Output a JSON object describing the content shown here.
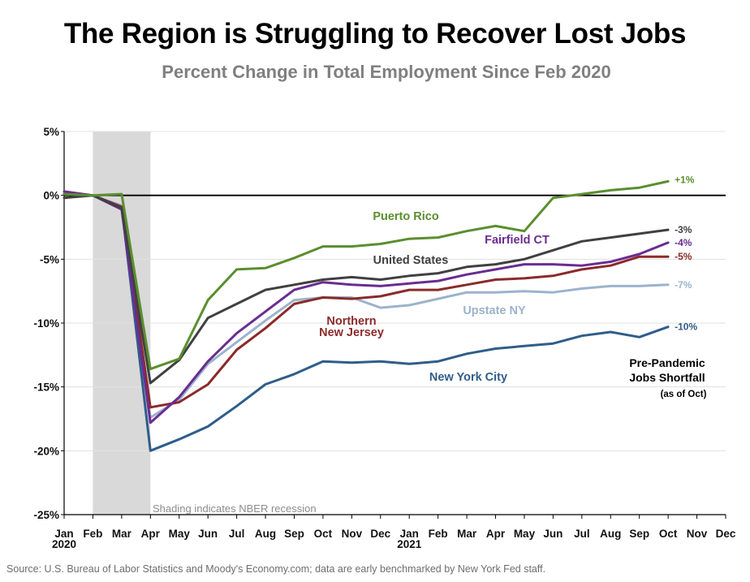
{
  "title": "The Region is Struggling to Recover Lost Jobs",
  "subtitle": "Percent Change in Total Employment Since Feb 2020",
  "source": "Source: U.S. Bureau of Labor Statistics and Moody's Economy.com; data are early benchmarked by New York Fed staff.",
  "chart_data": {
    "type": "line",
    "title": "The Region is Struggling to Recover Lost Jobs",
    "subtitle": "Percent Change in Total Employment Since Feb 2020",
    "xlabel": "",
    "ylabel": "",
    "x": [
      "Jan 2020",
      "Feb",
      "Mar",
      "Apr",
      "May",
      "Jun",
      "Jul",
      "Aug",
      "Sep",
      "Oct",
      "Nov",
      "Dec",
      "Jan 2021",
      "Feb",
      "Mar",
      "Apr",
      "May",
      "Jun",
      "Jul",
      "Aug",
      "Sep",
      "Oct"
    ],
    "x_ticks": [
      "Jan",
      "Feb",
      "Mar",
      "Apr",
      "May",
      "Jun",
      "Jul",
      "Aug",
      "Sep",
      "Oct",
      "Nov",
      "Dec",
      "Jan",
      "Feb",
      "Mar",
      "Apr",
      "May",
      "Jun",
      "Jul",
      "Aug",
      "Sep",
      "Oct",
      "Nov",
      "Dec"
    ],
    "x_year_labels": [
      "2020",
      "2021"
    ],
    "y_ticks": [
      "5%",
      "0%",
      "-5%",
      "-10%",
      "-15%",
      "-20%",
      "-25%"
    ],
    "ylim": [
      -25,
      5
    ],
    "grid": true,
    "zero_line": true,
    "recession_shading": {
      "start": "Feb 2020",
      "end": "Apr 2020",
      "color": "#d9d9d9"
    },
    "recession_note": "Shading indicates NBER recession",
    "series": [
      {
        "name": "Puerto Rico",
        "color": "#5a8e2f",
        "end_label": "+1%",
        "values": [
          0.1,
          0.0,
          0.1,
          -13.6,
          -12.8,
          -8.2,
          -5.8,
          -5.7,
          -4.9,
          -4.0,
          -4.0,
          -3.8,
          -3.4,
          -3.3,
          -2.8,
          -2.4,
          -2.8,
          -0.2,
          0.1,
          0.4,
          0.6,
          1.1
        ]
      },
      {
        "name": "United States",
        "color": "#404040",
        "end_label": "-3%",
        "values": [
          -0.2,
          0.0,
          -1.0,
          -14.7,
          -12.9,
          -9.6,
          -8.5,
          -7.4,
          -7.0,
          -6.6,
          -6.4,
          -6.6,
          -6.3,
          -6.1,
          -5.6,
          -5.4,
          -5.0,
          -4.3,
          -3.6,
          -3.3,
          -3.0,
          -2.7
        ]
      },
      {
        "name": "Fairfield CT",
        "color": "#6a2c91",
        "end_label": "-4%",
        "values": [
          0.3,
          0.0,
          -1.1,
          -17.8,
          -15.8,
          -13.0,
          -10.8,
          -9.1,
          -7.4,
          -6.8,
          -7.0,
          -7.1,
          -6.9,
          -6.7,
          -6.2,
          -5.8,
          -5.4,
          -5.4,
          -5.5,
          -5.2,
          -4.6,
          -3.7
        ]
      },
      {
        "name": "Northern New Jersey",
        "color": "#8b2a2a",
        "end_label": "-5%",
        "values": [
          0.1,
          0.0,
          -0.9,
          -16.6,
          -16.2,
          -14.8,
          -12.1,
          -10.4,
          -8.5,
          -8.0,
          -8.1,
          -7.9,
          -7.4,
          -7.4,
          -7.0,
          -6.6,
          -6.5,
          -6.3,
          -5.8,
          -5.5,
          -4.8,
          -4.8
        ]
      },
      {
        "name": "Upstate NY",
        "color": "#9bb3cc",
        "end_label": "-7%",
        "values": [
          0.2,
          0.0,
          -0.8,
          -17.4,
          -16.0,
          -13.2,
          -11.5,
          -9.8,
          -8.2,
          -8.0,
          -8.0,
          -8.8,
          -8.6,
          -8.1,
          -7.6,
          -7.6,
          -7.5,
          -7.6,
          -7.3,
          -7.1,
          -7.1,
          -7.0
        ]
      },
      {
        "name": "New York City",
        "color": "#2f5d8a",
        "end_label": "-10%",
        "values": [
          0.2,
          0.0,
          -0.9,
          -20.0,
          -19.1,
          -18.1,
          -16.5,
          -14.8,
          -14.0,
          -13.0,
          -13.1,
          -13.0,
          -13.2,
          -13.0,
          -12.4,
          -12.0,
          -11.8,
          -11.6,
          -11.0,
          -10.7,
          -11.1,
          -10.3
        ]
      }
    ],
    "annotation": {
      "line1": "Pre-Pandemic",
      "line2": "Jobs Shortfall",
      "line3": "(as of Oct)"
    },
    "labels_inline": {
      "puerto_rico": "Puerto Rico",
      "fairfield": "Fairfield CT",
      "united_states": "United States",
      "nnj_line1": "Northern",
      "nnj_line2": "New Jersey",
      "upstate": "Upstate NY",
      "nyc": "New York City"
    }
  }
}
